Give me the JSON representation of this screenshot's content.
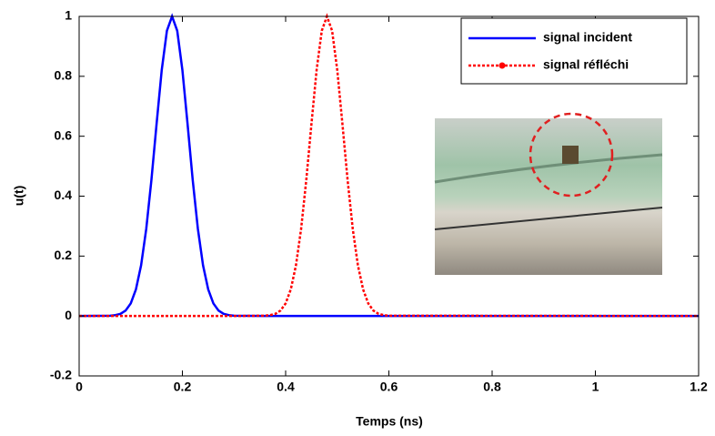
{
  "chart_data": {
    "type": "line",
    "xlabel": "Temps (ns)",
    "ylabel": "u(t)",
    "x": [
      0,
      0.06,
      0.07,
      0.08,
      0.09,
      0.1,
      0.11,
      0.12,
      0.13,
      0.14,
      0.15,
      0.16,
      0.17,
      0.18,
      0.19,
      0.2,
      0.21,
      0.22,
      0.23,
      0.24,
      0.25,
      0.26,
      0.27,
      0.28,
      0.29,
      0.3,
      0.36,
      0.37,
      0.38,
      0.39,
      0.4,
      0.41,
      0.42,
      0.43,
      0.44,
      0.45,
      0.46,
      0.47,
      0.48,
      0.49,
      0.5,
      0.51,
      0.52,
      0.53,
      0.54,
      0.55,
      0.56,
      0.57,
      0.58,
      0.59,
      0.6,
      1.2
    ],
    "series": [
      {
        "name": "signal incident",
        "color": "#0000ff",
        "linestyle": "solid",
        "values": [
          0,
          0.001,
          0.003,
          0.007,
          0.018,
          0.042,
          0.089,
          0.169,
          0.291,
          0.454,
          0.641,
          0.821,
          0.952,
          1,
          0.952,
          0.821,
          0.641,
          0.454,
          0.291,
          0.169,
          0.089,
          0.042,
          0.018,
          0.007,
          0.003,
          0.001,
          0,
          0,
          0,
          0,
          0,
          0,
          0,
          0,
          0,
          0,
          0,
          0,
          0,
          0,
          0,
          0,
          0,
          0,
          0,
          0,
          0,
          0,
          0,
          0,
          0,
          0
        ]
      },
      {
        "name": "signal réfléchi",
        "color": "#ff0000",
        "linestyle": "dotted",
        "values": [
          0,
          0,
          0,
          0,
          0,
          0,
          0,
          0,
          0,
          0,
          0,
          0,
          0,
          0,
          0,
          0,
          0,
          0,
          0,
          0,
          0,
          0,
          0,
          0,
          0,
          0,
          0.001,
          0.003,
          0.007,
          0.018,
          0.042,
          0.089,
          0.169,
          0.291,
          0.454,
          0.641,
          0.821,
          0.952,
          1,
          0.952,
          0.821,
          0.641,
          0.454,
          0.291,
          0.169,
          0.089,
          0.042,
          0.018,
          0.007,
          0.003,
          0.001,
          0
        ]
      }
    ],
    "xlim": [
      0,
      1.2
    ],
    "ylim": [
      -0.2,
      1
    ],
    "xticks": [
      0,
      0.2,
      0.4,
      0.6,
      0.8,
      1,
      1.2
    ],
    "yticks": [
      -0.2,
      0,
      0.2,
      0.4,
      0.6,
      0.8,
      1
    ],
    "legend": "upper right"
  }
}
